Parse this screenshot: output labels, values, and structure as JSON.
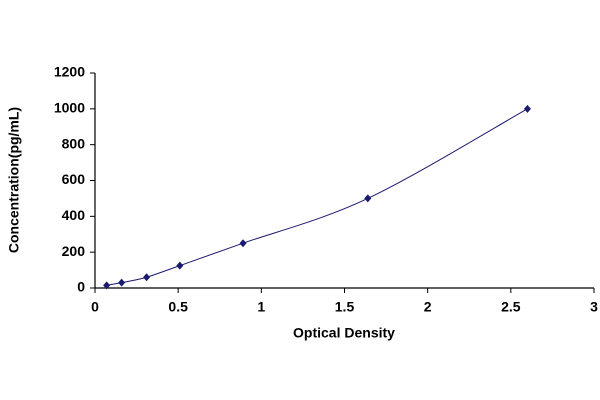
{
  "chart_data": {
    "type": "line",
    "x_label": "Optical Density",
    "y_label": "Concentration(pg/mL)",
    "x": [
      0.07,
      0.16,
      0.31,
      0.51,
      0.89,
      1.64,
      2.6
    ],
    "series": [
      {
        "color": "#1a1a6e",
        "values": [
          15,
          30,
          60,
          125,
          250,
          500,
          1000
        ]
      }
    ],
    "xlim": [
      0,
      3
    ],
    "xticks": [
      0,
      0.5,
      1,
      1.5,
      2,
      2.5,
      3
    ],
    "ylim": [
      0,
      1200
    ],
    "yticks": [
      0,
      200,
      400,
      600,
      800,
      1000,
      1200
    ],
    "grid": false
  }
}
